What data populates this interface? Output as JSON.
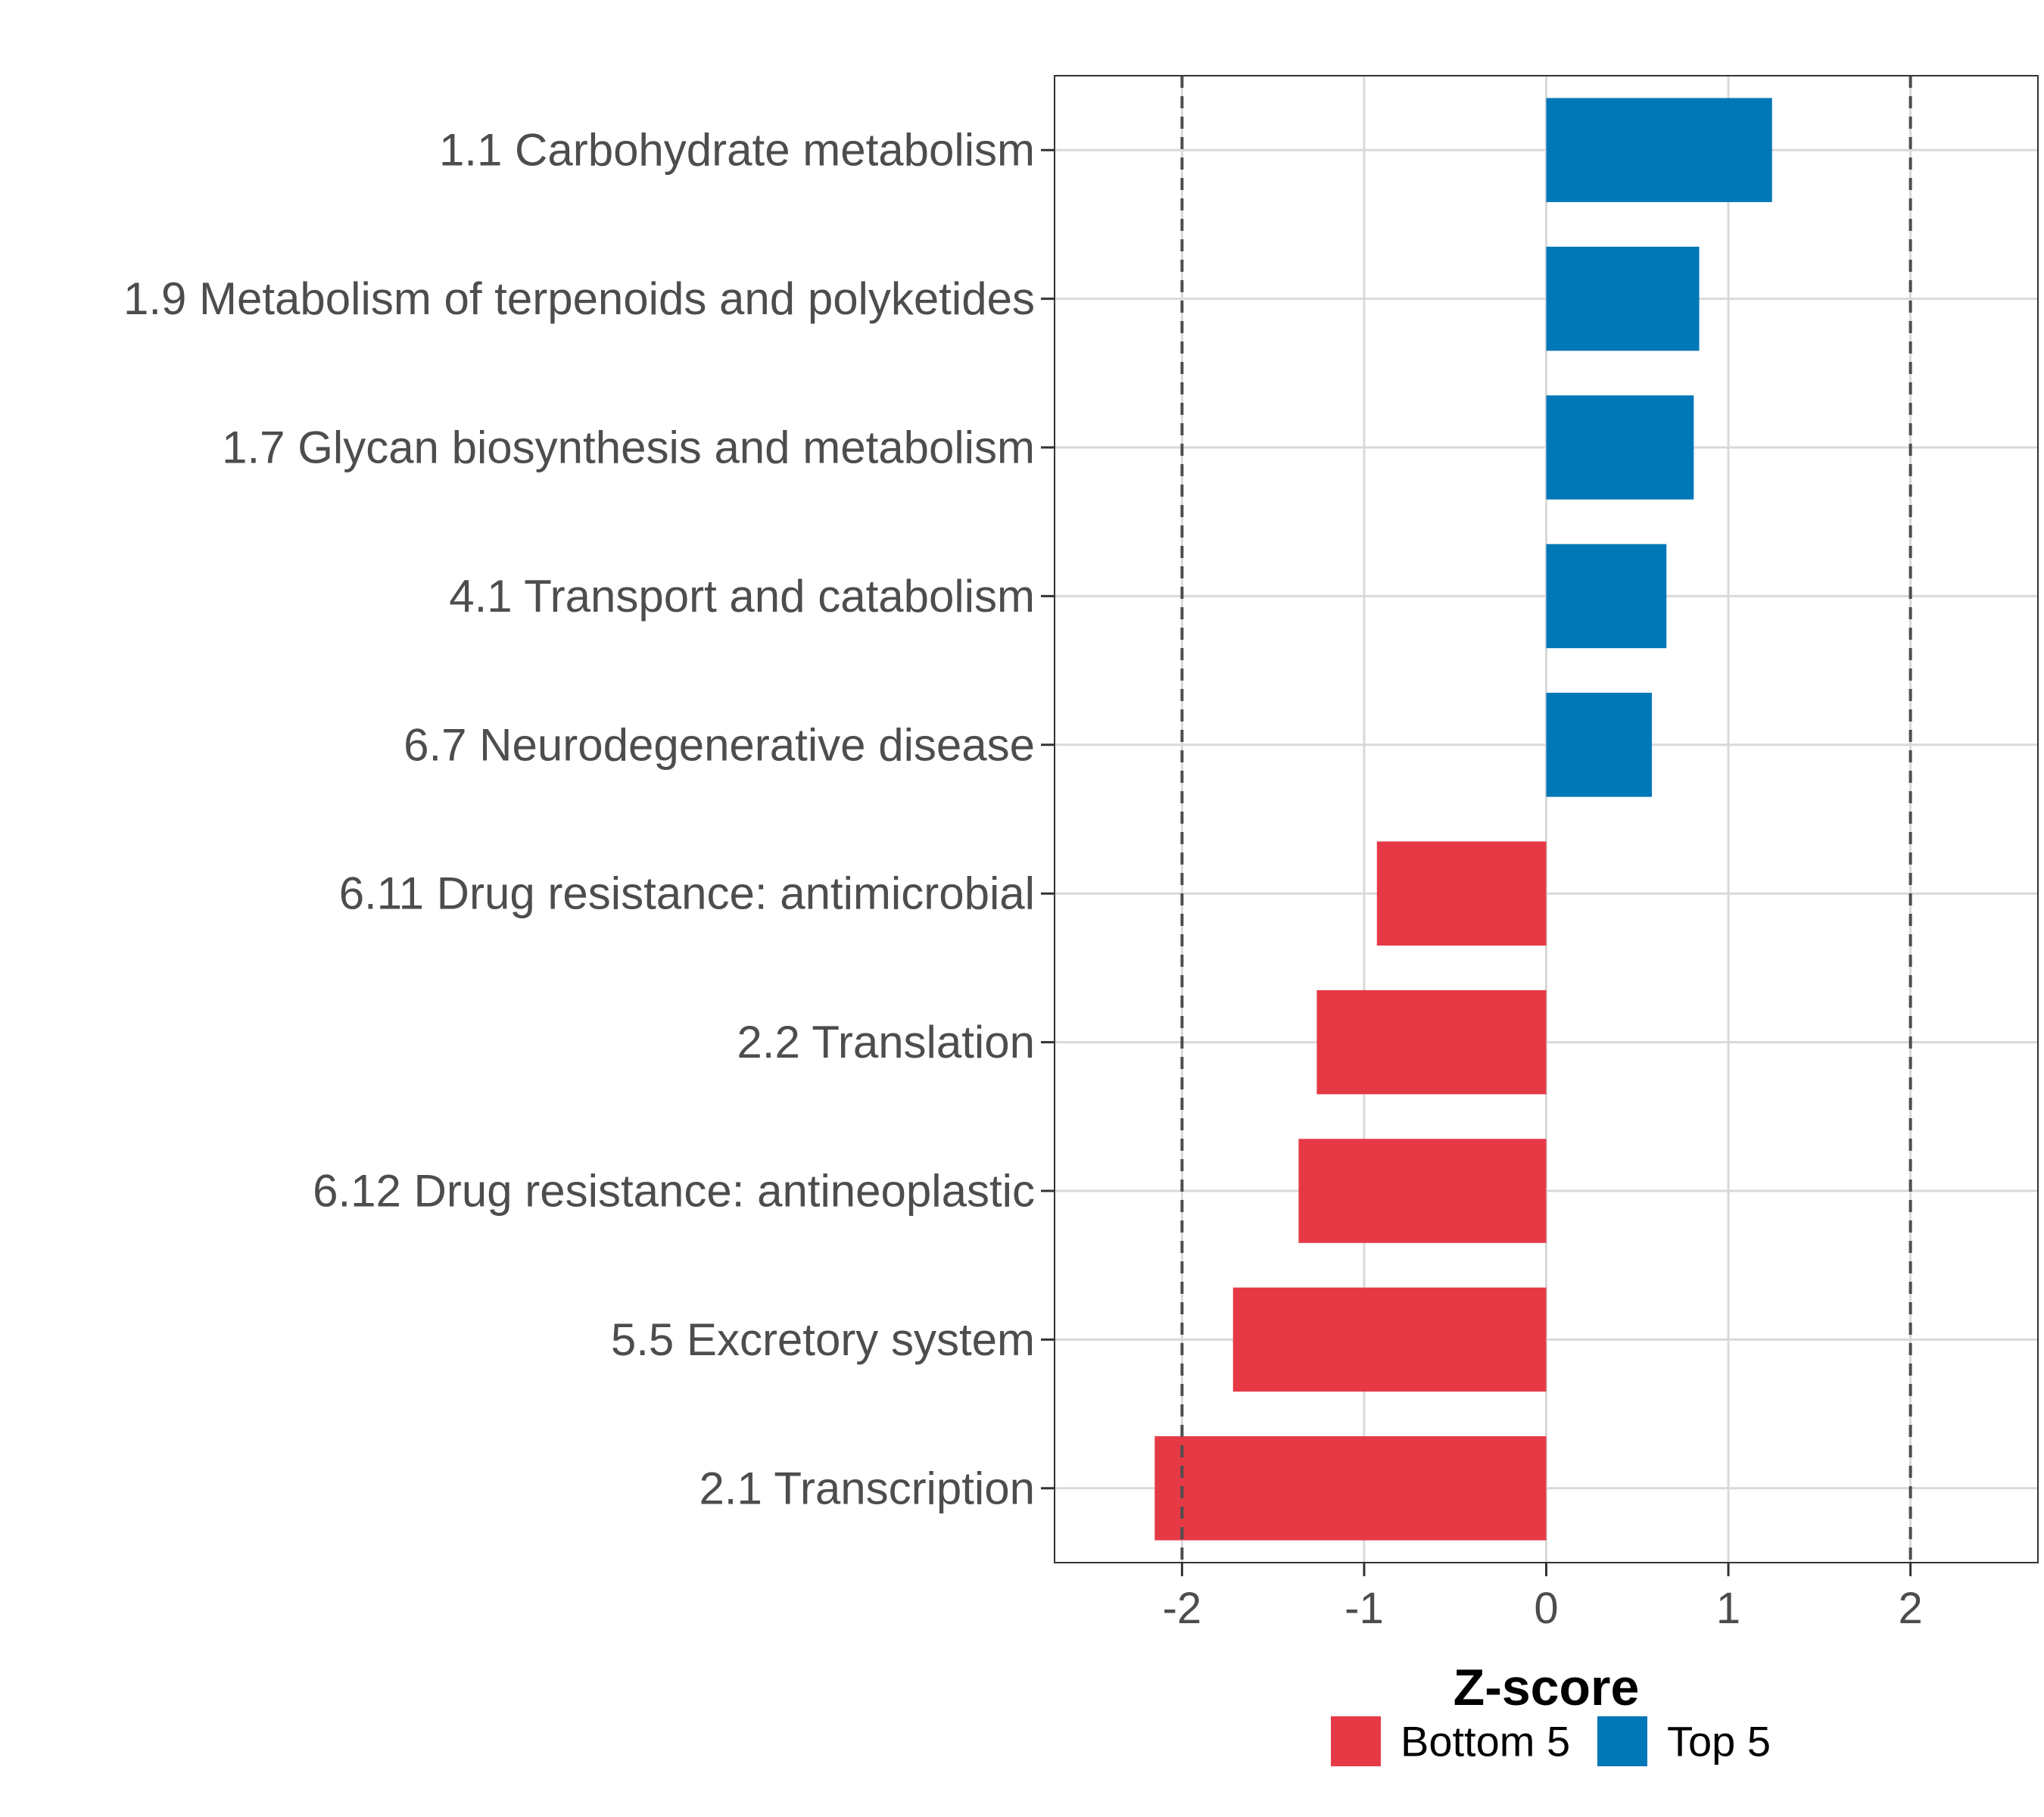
{
  "chart_data": {
    "type": "bar",
    "orientation": "horizontal",
    "categories": [
      "1.1 Carbohydrate metabolism",
      "1.9 Metabolism of terpenoids and polyketides",
      "1.7 Glycan biosynthesis and metabolism",
      "4.1 Transport and catabolism",
      "6.7 Neurodegenerative disease",
      "6.11 Drug resistance: antimicrobial",
      "2.2 Translation",
      "6.12 Drug resistance: antineoplastic",
      "5.5 Excretory system",
      "2.1 Transcription"
    ],
    "values": [
      1.24,
      0.84,
      0.81,
      0.66,
      0.58,
      -0.93,
      -1.26,
      -1.36,
      -1.72,
      -2.15
    ],
    "groups": [
      "Top 5",
      "Top 5",
      "Top 5",
      "Top 5",
      "Top 5",
      "Bottom 5",
      "Bottom 5",
      "Bottom 5",
      "Bottom 5",
      "Bottom 5"
    ],
    "xlabel": "Z-score",
    "ylabel": "",
    "xlim": [
      -2.7,
      2.7
    ],
    "xticks": [
      -2,
      -1,
      0,
      1,
      2
    ],
    "xtick_labels": [
      "-2",
      "-1",
      "0",
      "1",
      "2"
    ],
    "reference_lines": [
      -2,
      2
    ],
    "grid": true,
    "legend": {
      "position": "bottom",
      "entries": [
        {
          "label": "Bottom 5",
          "color": "#e63946"
        },
        {
          "label": "Top 5",
          "color": "#0077b6"
        }
      ]
    },
    "colors": {
      "Top 5": "#0077b6",
      "Bottom 5": "#e63946"
    }
  }
}
